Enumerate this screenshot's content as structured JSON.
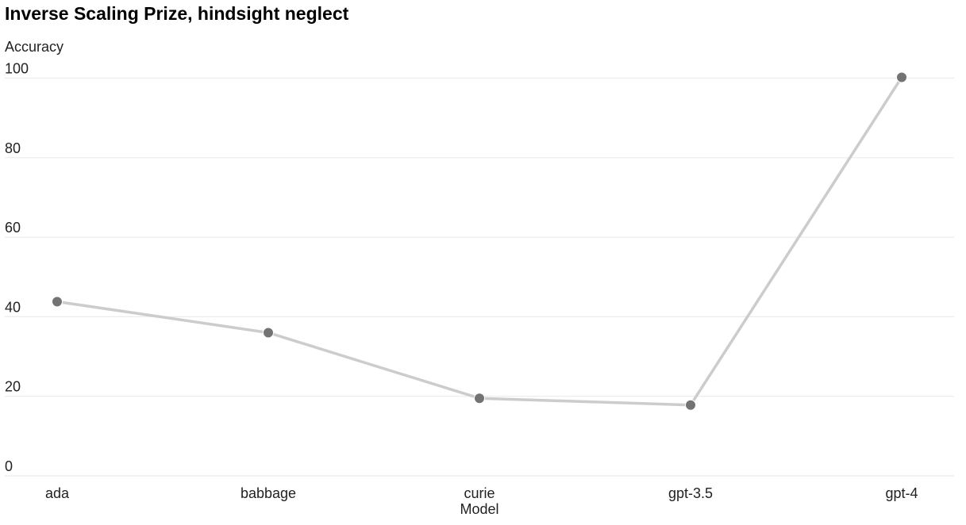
{
  "chart_data": {
    "type": "line",
    "title": "Inverse Scaling Prize, hindsight neglect",
    "xlabel": "Model",
    "ylabel": "Accuracy",
    "categories": [
      "ada",
      "babbage",
      "curie",
      "gpt-3.5",
      "gpt-4"
    ],
    "series": [
      {
        "values": [
          43.8,
          36.0,
          19.5,
          17.8,
          100.2
        ]
      }
    ],
    "yticks": [
      0,
      20,
      40,
      60,
      80,
      100
    ],
    "ylim": [
      0,
      100
    ],
    "grid": true,
    "colors": {
      "line": "#cccccc",
      "marker": "#737373",
      "grid": "#ececec"
    }
  }
}
